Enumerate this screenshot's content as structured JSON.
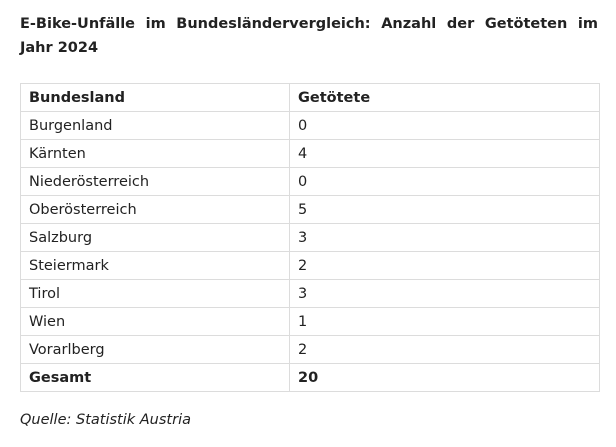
{
  "chart_data": {
    "type": "table",
    "title": "E-Bike-Unfälle im Bundesländervergleich: Anzahl der Getöteten im Jahr 2024",
    "columns": [
      "Bundesland",
      "Getötete"
    ],
    "rows": [
      [
        "Burgenland",
        "0"
      ],
      [
        "Kärnten",
        "4"
      ],
      [
        "Niederösterreich",
        "0"
      ],
      [
        "Oberösterreich",
        "5"
      ],
      [
        "Salzburg",
        "3"
      ],
      [
        "Steiermark",
        "2"
      ],
      [
        "Tirol",
        "3"
      ],
      [
        "Wien",
        "1"
      ],
      [
        "Vorarlberg",
        "2"
      ]
    ],
    "total": [
      "Gesamt",
      "20"
    ]
  },
  "source": "Quelle: Statistik Austria"
}
